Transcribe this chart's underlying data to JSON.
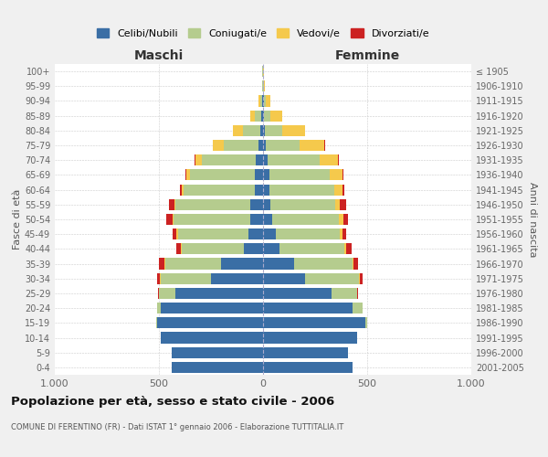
{
  "age_groups_bottom_to_top": [
    "0-4",
    "5-9",
    "10-14",
    "15-19",
    "20-24",
    "25-29",
    "30-34",
    "35-39",
    "40-44",
    "45-49",
    "50-54",
    "55-59",
    "60-64",
    "65-69",
    "70-74",
    "75-79",
    "80-84",
    "85-89",
    "90-94",
    "95-99",
    "100+"
  ],
  "birth_years_bottom_to_top": [
    "2001-2005",
    "1996-2000",
    "1991-1995",
    "1986-1990",
    "1981-1985",
    "1976-1980",
    "1971-1975",
    "1966-1970",
    "1961-1965",
    "1956-1960",
    "1951-1955",
    "1946-1950",
    "1941-1945",
    "1936-1940",
    "1931-1935",
    "1926-1930",
    "1921-1925",
    "1916-1920",
    "1911-1915",
    "1906-1910",
    "≤ 1905"
  ],
  "maschi": {
    "celibi": [
      440,
      440,
      490,
      510,
      490,
      420,
      250,
      200,
      90,
      70,
      60,
      60,
      40,
      40,
      35,
      20,
      15,
      10,
      5,
      2,
      2
    ],
    "coniugati": [
      0,
      0,
      2,
      5,
      20,
      80,
      240,
      270,
      300,
      340,
      370,
      360,
      340,
      310,
      260,
      170,
      80,
      30,
      10,
      3,
      1
    ],
    "vedovi": [
      0,
      0,
      0,
      0,
      0,
      0,
      5,
      5,
      5,
      5,
      5,
      5,
      10,
      20,
      30,
      50,
      50,
      20,
      8,
      1,
      0
    ],
    "divorziati": [
      0,
      0,
      0,
      0,
      0,
      5,
      15,
      25,
      20,
      20,
      30,
      25,
      8,
      5,
      5,
      0,
      0,
      0,
      0,
      0,
      0
    ]
  },
  "femmine": {
    "nubili": [
      430,
      410,
      450,
      490,
      430,
      330,
      200,
      150,
      80,
      60,
      45,
      35,
      30,
      30,
      20,
      15,
      10,
      5,
      3,
      2,
      1
    ],
    "coniugate": [
      0,
      0,
      2,
      10,
      50,
      120,
      260,
      280,
      310,
      310,
      320,
      310,
      310,
      290,
      250,
      160,
      80,
      30,
      10,
      3,
      1
    ],
    "vedove": [
      0,
      0,
      0,
      0,
      0,
      0,
      5,
      5,
      10,
      10,
      20,
      25,
      40,
      60,
      90,
      120,
      110,
      55,
      20,
      5,
      2
    ],
    "divorziate": [
      0,
      0,
      0,
      0,
      0,
      5,
      15,
      20,
      25,
      20,
      25,
      30,
      10,
      5,
      5,
      5,
      0,
      0,
      0,
      0,
      0
    ]
  },
  "colors": {
    "celibi_nubili": "#3a6ea5",
    "coniugati": "#b5cc8e",
    "vedovi": "#f5c94c",
    "divorziati": "#cc2222"
  },
  "xlim": 1000,
  "title": "Popolazione per età, sesso e stato civile - 2006",
  "subtitle": "COMUNE DI FERENTINO (FR) - Dati ISTAT 1° gennaio 2006 - Elaborazione TUTTITALIA.IT",
  "xlabel_left": "Maschi",
  "xlabel_right": "Femmine",
  "ylabel_left": "Fasce di età",
  "ylabel_right": "Anni di nascita",
  "legend_labels": [
    "Celibi/Nubili",
    "Coniugati/e",
    "Vedovi/e",
    "Divorziati/e"
  ],
  "bg_color": "#f0f0f0",
  "plot_bg_color": "#ffffff",
  "grid_color": "#cccccc"
}
